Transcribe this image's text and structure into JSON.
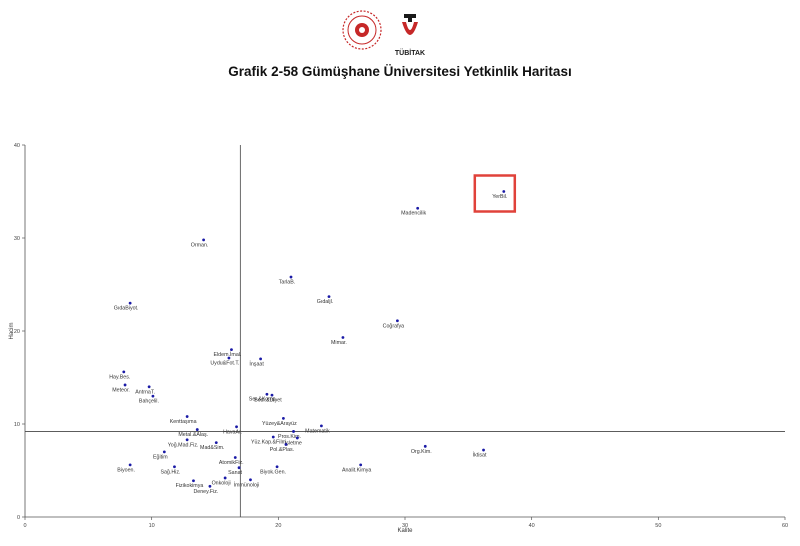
{
  "header": {
    "title": "Grafik 2-58 Gümüşhane Üniversitesi Yetkinlik Haritası",
    "logo_right_text": "TÜBİTAK"
  },
  "chart_data": {
    "type": "scatter",
    "xlabel": "Kalite",
    "ylabel": "Hacim",
    "xlim": [
      0,
      60
    ],
    "ylim": [
      0,
      40
    ],
    "xticks": [
      0,
      10,
      20,
      30,
      40,
      50,
      60
    ],
    "yticks": [
      0,
      10,
      20,
      30,
      40
    ],
    "vline_x": 17,
    "hline_y": 9.2,
    "point_color": "#1a1aa6",
    "highlight_color": "#e0423a",
    "highlight_label": "YerBil.",
    "points": [
      {
        "label": "YerBil.",
        "x": 37.8,
        "y": 35.0
      },
      {
        "label": "Madencilik",
        "x": 31.0,
        "y": 33.2
      },
      {
        "label": "Orman.",
        "x": 14.1,
        "y": 29.8
      },
      {
        "label": "TarlaB.",
        "x": 21.0,
        "y": 25.8
      },
      {
        "label": "Gıdaljl.",
        "x": 24.0,
        "y": 23.7
      },
      {
        "label": "GıdaBiyot.",
        "x": 8.3,
        "y": 23.0
      },
      {
        "label": "Coğrafya",
        "x": 29.4,
        "y": 21.1
      },
      {
        "label": "Mimar.",
        "x": 25.1,
        "y": 19.3
      },
      {
        "label": "Eldem.İmal.",
        "x": 16.3,
        "y": 18.0
      },
      {
        "label": "Uydu&Fot.T.",
        "x": 16.1,
        "y": 17.1
      },
      {
        "label": "İnşaat",
        "x": 18.6,
        "y": 17.0
      },
      {
        "label": "Hay.Bes.",
        "x": 7.8,
        "y": 15.6
      },
      {
        "label": "Meteor.",
        "x": 7.9,
        "y": 14.2
      },
      {
        "label": "AntrnaT.",
        "x": 9.8,
        "y": 14.0
      },
      {
        "label": "Ser.&Komp.",
        "x": 19.1,
        "y": 13.2
      },
      {
        "label": "Besl.&Diyet",
        "x": 19.5,
        "y": 13.1
      },
      {
        "label": "Bahçelil.",
        "x": 10.1,
        "y": 13.0
      },
      {
        "label": "Kenttaşıma",
        "x": 12.8,
        "y": 10.8
      },
      {
        "label": "Yüzey&Arayüz",
        "x": 20.4,
        "y": 10.6
      },
      {
        "label": "HavaAr.",
        "x": 16.7,
        "y": 9.7
      },
      {
        "label": "Metal.&Alaş.",
        "x": 13.6,
        "y": 9.4
      },
      {
        "label": "Matematik",
        "x": 23.4,
        "y": 9.8
      },
      {
        "label": "Pros.Kim.",
        "x": 21.2,
        "y": 9.2
      },
      {
        "label": "Yüz.Kap.&Film.",
        "x": 19.6,
        "y": 8.6
      },
      {
        "label": "İşletme",
        "x": 21.5,
        "y": 8.5
      },
      {
        "label": "Yoğ.Mad.Fiz.",
        "x": 12.8,
        "y": 8.3
      },
      {
        "label": "Mad&Sim.",
        "x": 15.1,
        "y": 8.0
      },
      {
        "label": "Pol.&Plas.",
        "x": 20.6,
        "y": 7.8
      },
      {
        "label": "Org.Kim.",
        "x": 31.6,
        "y": 7.6
      },
      {
        "label": "İktisat",
        "x": 36.2,
        "y": 7.2
      },
      {
        "label": "Eğitim",
        "x": 11.0,
        "y": 7.0
      },
      {
        "label": "AtomikFiz.",
        "x": 16.6,
        "y": 6.4
      },
      {
        "label": "Biyoen.",
        "x": 8.3,
        "y": 5.6
      },
      {
        "label": "Sağ.Hiz.",
        "x": 11.8,
        "y": 5.4
      },
      {
        "label": "Sanat",
        "x": 16.9,
        "y": 5.3
      },
      {
        "label": "Analit.Kimya",
        "x": 26.5,
        "y": 5.6
      },
      {
        "label": "Biyok.Gen.",
        "x": 19.9,
        "y": 5.4
      },
      {
        "label": "Onkoloji",
        "x": 15.8,
        "y": 4.2
      },
      {
        "label": "İmmünoloji",
        "x": 17.8,
        "y": 4.0
      },
      {
        "label": "Fizikokimya",
        "x": 13.3,
        "y": 3.9
      },
      {
        "label": "Deney.Fiz.",
        "x": 14.6,
        "y": 3.3
      }
    ]
  }
}
